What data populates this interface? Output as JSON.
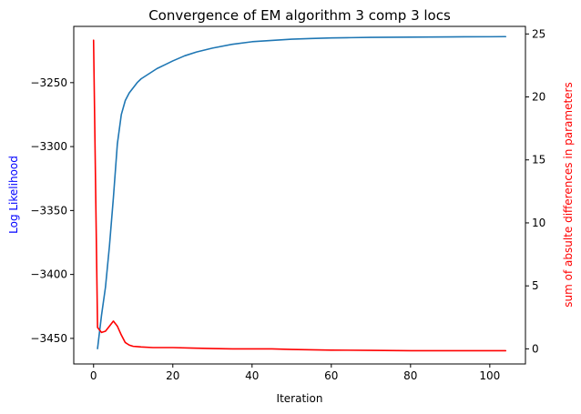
{
  "chart_data": {
    "type": "line",
    "title": "Convergence of EM algorithm 3 comp 3 locs",
    "xlabel": "Iteration",
    "ylabel_left": "Log Likelihood",
    "ylabel_right": "sum of absulte differences in parameters",
    "xlim": [
      -5,
      109
    ],
    "ylim_left": [
      -3470,
      -3206
    ],
    "ylim_right": [
      -1.2,
      25.6
    ],
    "x_ticks": [
      0,
      20,
      40,
      60,
      80,
      100
    ],
    "y_ticks_left": [
      -3250,
      -3300,
      -3350,
      -3400,
      -3450
    ],
    "y_ticks_right": [
      0,
      5,
      10,
      15,
      20,
      25
    ],
    "grid": false,
    "series": [
      {
        "axis": "left",
        "color": "#1f77b4",
        "x": [
          1,
          2,
          3,
          4,
          5,
          6,
          7,
          8,
          9,
          10,
          11,
          12,
          14,
          16,
          18,
          20,
          23,
          26,
          30,
          35,
          40,
          45,
          50,
          55,
          60,
          65,
          70,
          80,
          90,
          100,
          104
        ],
        "y": [
          -3458,
          -3432,
          -3410,
          -3378,
          -3340,
          -3298,
          -3275,
          -3264,
          -3258,
          -3254,
          -3250,
          -3247,
          -3243,
          -3239,
          -3236,
          -3233,
          -3229,
          -3226,
          -3223,
          -3220,
          -3218,
          -3217,
          -3216,
          -3215.5,
          -3215,
          -3214.8,
          -3214.6,
          -3214.4,
          -3214.2,
          -3214.1,
          -3214
        ]
      },
      {
        "axis": "right",
        "color": "#ff0000",
        "x": [
          0,
          1,
          2,
          3,
          4,
          5,
          6,
          7,
          8,
          9,
          10,
          11,
          12,
          15,
          20,
          25,
          30,
          35,
          40,
          45,
          50,
          60,
          70,
          80,
          90,
          100,
          104
        ],
        "y": [
          24.5,
          1.7,
          1.3,
          1.4,
          1.8,
          2.2,
          1.8,
          1.1,
          0.5,
          0.3,
          0.2,
          0.18,
          0.15,
          0.1,
          0.1,
          0.06,
          0.02,
          0.0,
          0.0,
          0.0,
          -0.05,
          -0.1,
          -0.12,
          -0.15,
          -0.15,
          -0.15,
          -0.15
        ]
      }
    ]
  }
}
